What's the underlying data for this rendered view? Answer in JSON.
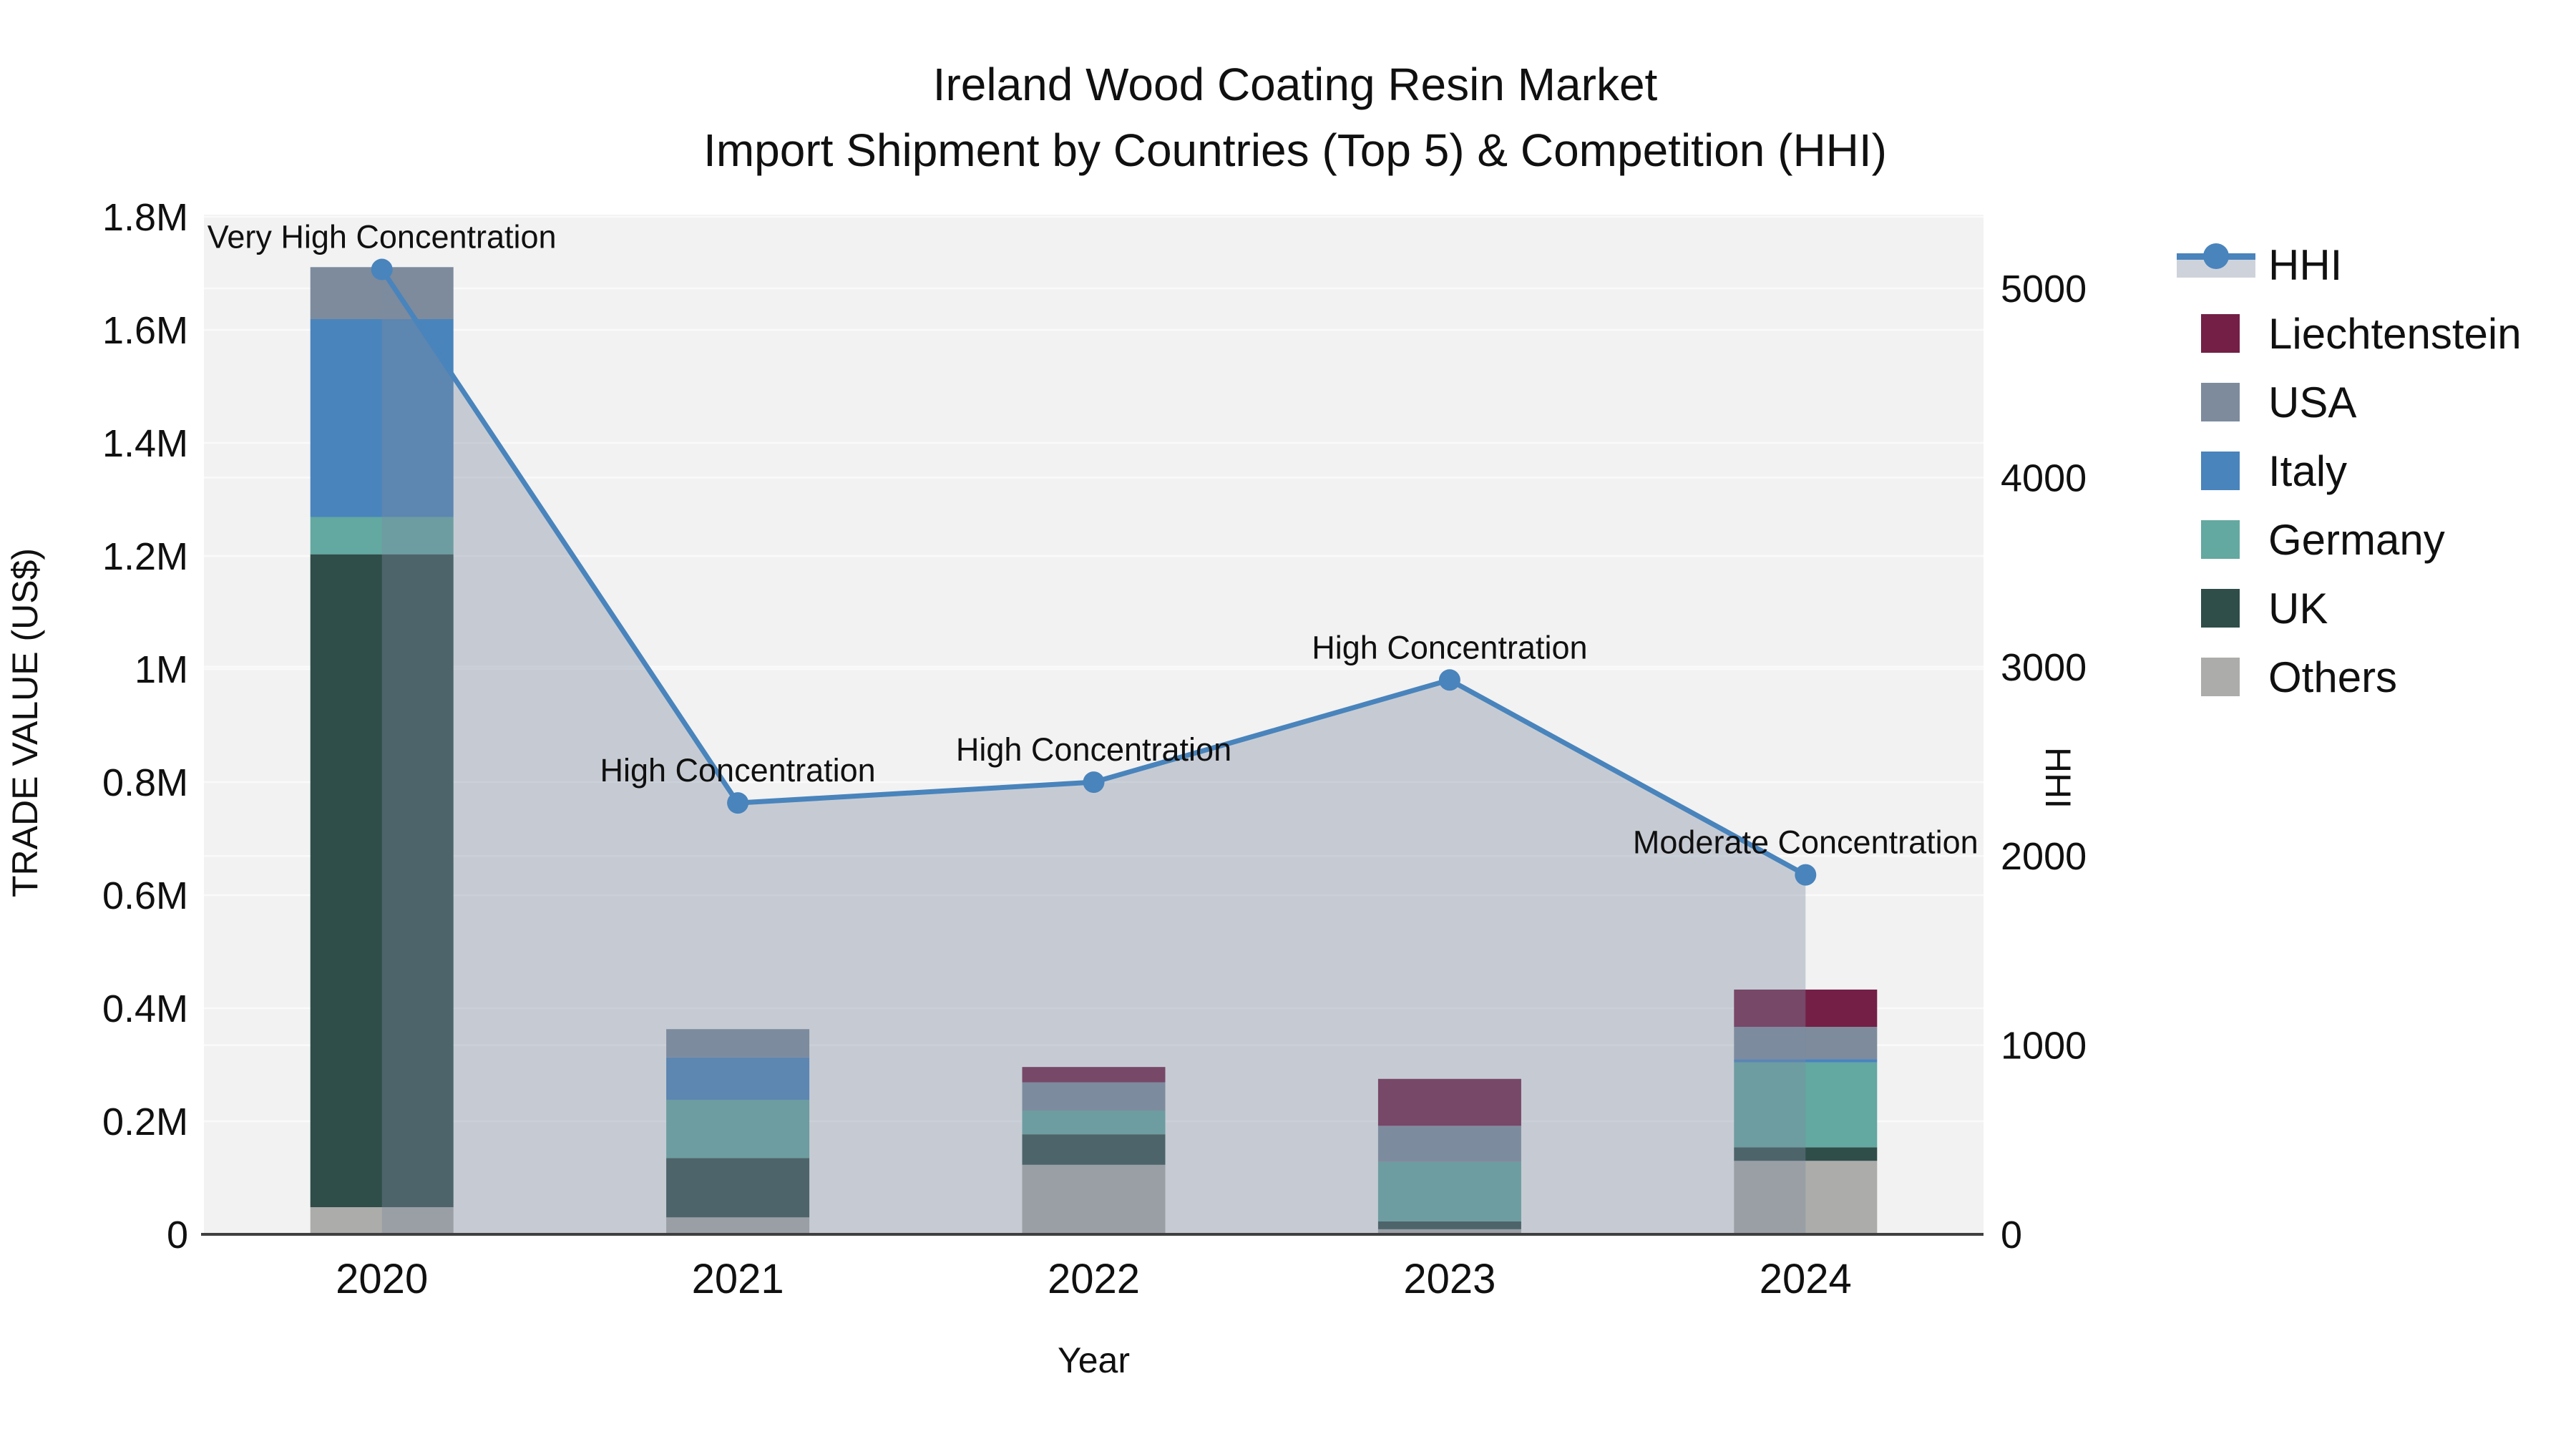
{
  "title": {
    "line1": "Ireland Wood Coating Resin Market",
    "line2": "Import Shipment by Countries (Top 5) & Competition (HHI)"
  },
  "axis_titles": {
    "left": "TRADE VALUE (US$)",
    "bottom": "Year",
    "right": "HHI"
  },
  "legend": {
    "items": [
      {
        "label": "HHI",
        "type": "line",
        "color": "#4984BC",
        "band_color": "rgba(125,140,160,0.38)"
      },
      {
        "label": "Liechtenstein",
        "type": "square",
        "color": "#731F46"
      },
      {
        "label": "USA",
        "type": "square",
        "color": "#7D8B9D"
      },
      {
        "label": "Italy",
        "type": "square",
        "color": "#4984BC"
      },
      {
        "label": "Germany",
        "type": "square",
        "color": "#63A8A1"
      },
      {
        "label": "UK",
        "type": "square",
        "color": "#2F4D49"
      },
      {
        "label": "Others",
        "type": "square",
        "color": "#ACACAA"
      }
    ]
  },
  "chart_data": {
    "type": "combo-stacked-bar-line",
    "categories": [
      "2020",
      "2021",
      "2022",
      "2023",
      "2024"
    ],
    "bar_stack_order": "bottom to top",
    "series": [
      {
        "name": "Others",
        "color": "#ACACAA",
        "values": [
          48000,
          30000,
          123000,
          9000,
          130000
        ]
      },
      {
        "name": "UK",
        "color": "#2F4D49",
        "values": [
          1155000,
          105000,
          54000,
          14000,
          24000
        ]
      },
      {
        "name": "Germany",
        "color": "#63A8A1",
        "values": [
          66000,
          103000,
          42000,
          105000,
          150000
        ]
      },
      {
        "name": "Italy",
        "color": "#4984BC",
        "values": [
          350000,
          75000,
          0,
          0,
          6000
        ]
      },
      {
        "name": "USA",
        "color": "#7D8B9D",
        "values": [
          92000,
          50000,
          50000,
          64000,
          57000
        ]
      },
      {
        "name": "Liechtenstein",
        "color": "#731F46",
        "values": [
          0,
          0,
          27000,
          83000,
          66000
        ]
      }
    ],
    "line_series": {
      "name": "HHI",
      "color": "#4984BC",
      "area_fill": "rgba(125,140,160,0.38)",
      "values": [
        5100,
        2280,
        2390,
        2930,
        1900
      ]
    },
    "annotations": [
      {
        "x": "2020",
        "text": "Very High Concentration"
      },
      {
        "x": "2021",
        "text": "High Concentration"
      },
      {
        "x": "2022",
        "text": "High Concentration"
      },
      {
        "x": "2023",
        "text": "High Concentration"
      },
      {
        "x": "2024",
        "text": "Moderate Concentration"
      }
    ],
    "left_axis": {
      "title": "TRADE VALUE (US$)",
      "range": [
        0,
        1800000
      ],
      "ticks": [
        {
          "v": 0,
          "label": "0"
        },
        {
          "v": 200000,
          "label": "0.2M"
        },
        {
          "v": 400000,
          "label": "0.4M"
        },
        {
          "v": 600000,
          "label": "0.6M"
        },
        {
          "v": 800000,
          "label": "0.8M"
        },
        {
          "v": 1000000,
          "label": "1M"
        },
        {
          "v": 1200000,
          "label": "1.2M"
        },
        {
          "v": 1400000,
          "label": "1.4M"
        },
        {
          "v": 1600000,
          "label": "1.6M"
        },
        {
          "v": 1800000,
          "label": "1.8M"
        }
      ]
    },
    "right_axis": {
      "title": "HHI",
      "range": [
        0,
        5000
      ],
      "ticks": [
        {
          "v": 0,
          "label": "0"
        },
        {
          "v": 1000,
          "label": "1000"
        },
        {
          "v": 2000,
          "label": "2000"
        },
        {
          "v": 3000,
          "label": "3000"
        },
        {
          "v": 4000,
          "label": "4000"
        },
        {
          "v": 5000,
          "label": "5000"
        }
      ]
    },
    "x_axis": {
      "title": "Year"
    },
    "style": {
      "plot_bg": "#F2F2F2",
      "grid_color": "#FAFAFA",
      "axis_line_color": "#3F3F3F",
      "text_color": "#101010"
    }
  }
}
